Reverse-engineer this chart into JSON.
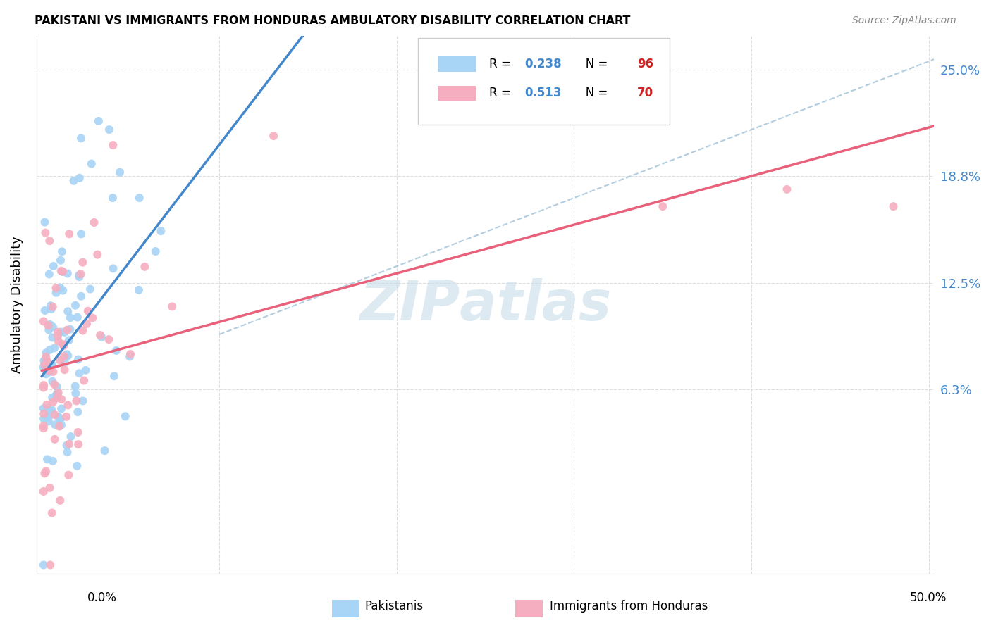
{
  "title": "PAKISTANI VS IMMIGRANTS FROM HONDURAS AMBULATORY DISABILITY CORRELATION CHART",
  "source": "Source: ZipAtlas.com",
  "ylabel": "Ambulatory Disability",
  "ytick_labels": [
    "6.3%",
    "12.5%",
    "18.8%",
    "25.0%"
  ],
  "ytick_values": [
    0.063,
    0.125,
    0.188,
    0.25
  ],
  "xlim": [
    -0.003,
    0.503
  ],
  "ylim": [
    -0.045,
    0.27
  ],
  "R_pakistani": 0.238,
  "N_pakistani": 96,
  "R_honduras": 0.513,
  "N_honduras": 70,
  "pakistani_color": "#a8d4f5",
  "honduras_color": "#f5aec0",
  "trendline_pakistani_color": "#4488cc",
  "trendline_honduras_color": "#e8607a",
  "trendline_dashed_color": "#aac8dc",
  "watermark_color": "#c8dce8",
  "legend_label_pakistani": "Pakistanis",
  "legend_label_honduras": "Immigrants from Honduras",
  "legend_r_color": "#4488cc",
  "legend_n_color": "#cc2222",
  "grid_color": "#dddddd",
  "spine_color": "#cccccc",
  "right_ytick_color": "#4488cc"
}
